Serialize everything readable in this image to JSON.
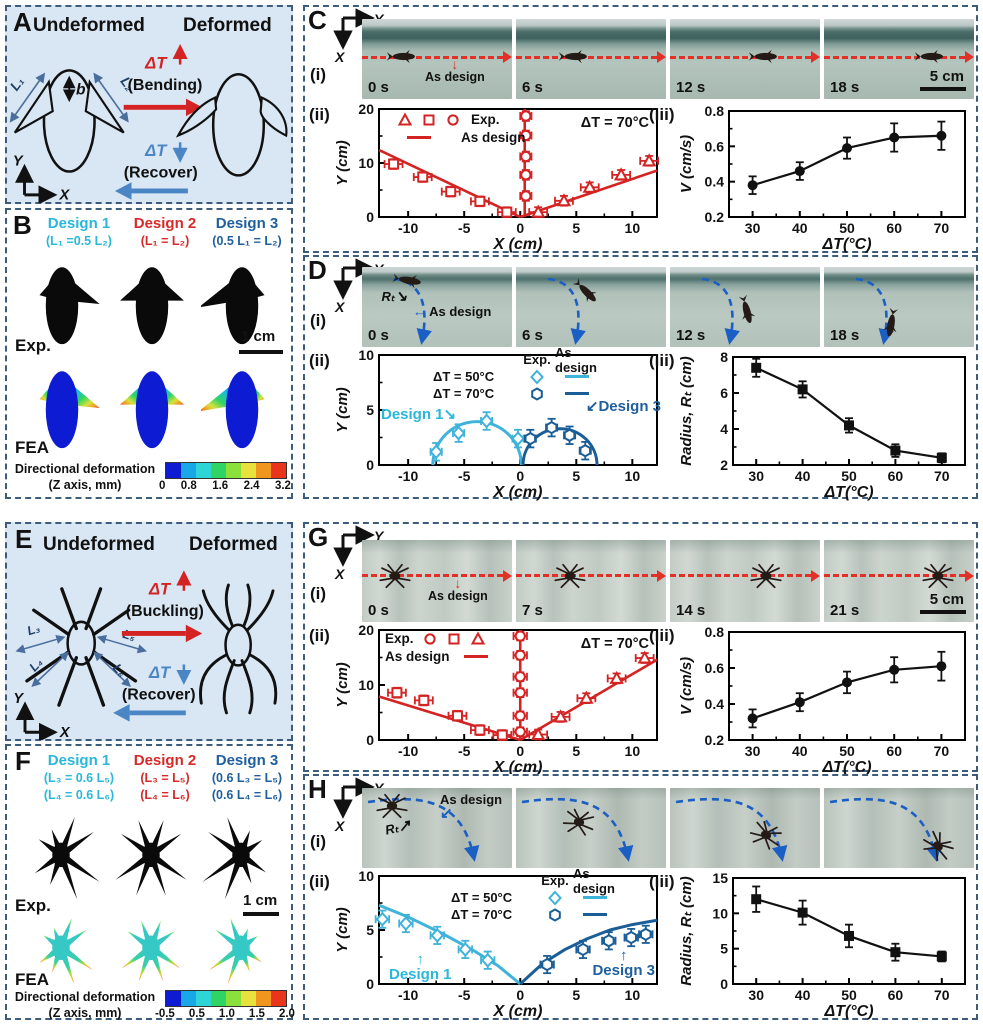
{
  "panels": {
    "a": "A",
    "b": "B",
    "c": "C",
    "d": "D",
    "e": "E",
    "f": "F",
    "g": "G",
    "h": "H"
  },
  "subs": {
    "i": "(i)",
    "ii": "(ii)",
    "iii": "(iii)"
  },
  "axes": {
    "x": "X",
    "y": "Y"
  },
  "legend": {
    "exp": "Exp.",
    "as_design": "As design",
    "t50": "ΔT = 50°C",
    "t70": "ΔT = 70°C"
  },
  "design_labels": {
    "d1": "Design 1",
    "d3": "Design 3"
  },
  "colors": {
    "design1": "#2ab7d9",
    "design2": "#d62a28",
    "design3": "#1f5f9e",
    "red_accent": "#d42323",
    "light_blue": "#3fb3d9",
    "dark_blue": "#1b5e97",
    "recover_blue": "#4a86c4",
    "path_blue": "#1b5ec4",
    "panel_bg": "#d9e6f3",
    "border": "#3d5c7c"
  },
  "panelA": {
    "undeformed": "Undeformed",
    "deformed": "Deformed",
    "dT": "ΔT",
    "bending": "(Bending)",
    "recover": "(Recover)",
    "L1": "L₁",
    "L2": "L₂",
    "b": "b"
  },
  "panelB": {
    "designs": [
      {
        "name": "Design 1",
        "f1": "(L₁ =0.5 L₂)"
      },
      {
        "name": "Design 2",
        "f1": "(L₁ = L₂)"
      },
      {
        "name": "Design 3",
        "f1": "(0.5 L₁ = L₂)"
      }
    ],
    "exp": "Exp.",
    "fea": "FEA",
    "scale": "1 cm",
    "cb_title": "Directional deformation",
    "cb_sub": "(Z axis, mm)",
    "cb_ticks": [
      "0",
      "0.8",
      "1.6",
      "2.4",
      "3.2"
    ]
  },
  "panelC": {
    "times": [
      "0 s",
      "6 s",
      "12 s",
      "18 s"
    ],
    "as_design": "As design",
    "scale": "5 cm"
  },
  "panelD": {
    "times": [
      "0 s",
      "6 s",
      "12 s",
      "18 s"
    ],
    "as_design": "As design",
    "rt": "Rₜ"
  },
  "panelE": {
    "undeformed": "Undeformed",
    "deformed": "Deformed",
    "dT": "ΔT",
    "buckling": "(Buckling)",
    "recover": "(Recover)",
    "L3": "L₃",
    "L4": "L₄",
    "L5": "L₅",
    "L6": "L₆"
  },
  "panelF": {
    "designs": [
      {
        "name": "Design 1",
        "f1": "(L₃ = 0.6 L₅)",
        "f2": "(L₄ = 0.6 L₆)"
      },
      {
        "name": "Design 2",
        "f1": "(L₃ = L₅)",
        "f2": "(L₄ = L₆)"
      },
      {
        "name": "Design 3",
        "f1": "(0.6 L₃ = L₅)",
        "f2": "(0.6 L₄ = L₆)"
      }
    ],
    "exp": "Exp.",
    "fea": "FEA",
    "scale": "1 cm",
    "cb_title": "Directional deformation",
    "cb_sub": "(Z axis, mm)",
    "cb_ticks": [
      "-0.5",
      "0.5",
      "1.0",
      "1.5",
      "2.0"
    ]
  },
  "panelG": {
    "times": [
      "0 s",
      "7 s",
      "14 s",
      "21 s"
    ],
    "as_design": "As design",
    "scale": "5 cm"
  },
  "panelH": {
    "as_design": "As design",
    "rt": "Rₜ"
  },
  "chart_data": {
    "c2": {
      "type": "scatter",
      "xlabel": "X (cm)",
      "ylabel": "Y (cm)",
      "xlim": [
        -12.6,
        12.2
      ],
      "ylim": [
        0,
        20
      ],
      "xticks": [
        -10,
        -5,
        0,
        5,
        10
      ],
      "yticks": [
        0,
        10,
        20
      ],
      "annotation": "ΔT = 70°C",
      "color": "#d42323",
      "legend_position": "top-left",
      "lines": [
        {
          "pts": [
            [
              -12.6,
              12.4
            ],
            [
              0,
              0
            ]
          ]
        },
        {
          "pts": [
            [
              0.4,
              0
            ],
            [
              0.4,
              20
            ]
          ]
        },
        {
          "pts": [
            [
              0,
              0
            ],
            [
              12.2,
              8.6
            ]
          ]
        }
      ],
      "series": [
        {
          "name": "exp-square",
          "marker": "square",
          "pts": [
            [
              -11.3,
              9.8
            ],
            [
              -8.7,
              7.4
            ],
            [
              -6.2,
              4.7
            ],
            [
              -3.6,
              2.9
            ],
            [
              -1.2,
              0.9
            ]
          ],
          "xerr": 0.8,
          "yerr": 0.9
        },
        {
          "name": "exp-circle",
          "marker": "circle",
          "pts": [
            [
              0.5,
              18.7
            ],
            [
              0.5,
              15.1
            ],
            [
              0.5,
              11.2
            ],
            [
              0.5,
              7.8
            ],
            [
              0.5,
              3.9
            ]
          ],
          "xerr": 0.5,
          "yerr": 0.9
        },
        {
          "name": "exp-triangle",
          "marker": "triangle",
          "pts": [
            [
              1.6,
              0.9
            ],
            [
              3.9,
              3.0
            ],
            [
              6.2,
              5.5
            ],
            [
              9.0,
              7.8
            ],
            [
              11.5,
              10.4
            ]
          ],
          "xerr": 0.8,
          "yerr": 0.9
        }
      ]
    },
    "c3": {
      "type": "line",
      "xlabel": "ΔT(°C)",
      "ylabel": "V (cm/s)",
      "xlim": [
        25,
        75
      ],
      "ylim": [
        0.2,
        0.8
      ],
      "xticks": [
        30,
        40,
        50,
        60,
        70
      ],
      "yticks": [
        0.2,
        0.4,
        0.6,
        0.8
      ],
      "color": "#111111",
      "series": [
        {
          "name": "velocity",
          "marker": "fcircle",
          "connect": true,
          "pts": [
            [
              30,
              0.38
            ],
            [
              40,
              0.46
            ],
            [
              50,
              0.59
            ],
            [
              60,
              0.65
            ],
            [
              70,
              0.66
            ]
          ],
          "yerr": [
            0.05,
            0.05,
            0.06,
            0.08,
            0.08
          ]
        }
      ]
    },
    "d2": {
      "type": "scatter",
      "xlabel": "X (cm)",
      "ylabel": "Y (cm)",
      "xlim": [
        -12.6,
        12.2
      ],
      "ylim": [
        0,
        10
      ],
      "xticks": [
        -10,
        -5,
        0,
        5,
        10
      ],
      "yticks": [
        0,
        5,
        10
      ],
      "arcs": [
        {
          "cx": -3.85,
          "r": 3.95,
          "color": "#3fb3d9"
        },
        {
          "cx": 3.55,
          "r": 3.3,
          "color": "#1b5e97"
        }
      ],
      "series": [
        {
          "name": "t50-diamond",
          "marker": "diamond",
          "color": "#3fb3d9",
          "pts": [
            [
              -7.5,
              1.2
            ],
            [
              -5.5,
              2.9
            ],
            [
              -3.0,
              4.0
            ],
            [
              -0.2,
              2.4
            ]
          ],
          "xerr": 0.5,
          "yerr": 0.8
        },
        {
          "name": "t70-hexagon",
          "marker": "hexagon",
          "color": "#1b5e97",
          "pts": [
            [
              0.9,
              2.4
            ],
            [
              2.8,
              3.4
            ],
            [
              4.4,
              2.7
            ],
            [
              5.8,
              1.3
            ]
          ],
          "xerr": 0.5,
          "yerr": 0.8
        }
      ]
    },
    "d3": {
      "type": "line",
      "xlabel": "ΔT(°C)",
      "ylabel": "Radius, Rₜ (cm)",
      "xlim": [
        25,
        75
      ],
      "ylim": [
        2,
        8
      ],
      "xticks": [
        30,
        40,
        50,
        60,
        70
      ],
      "yticks": [
        2,
        4,
        6,
        8
      ],
      "color": "#111111",
      "series": [
        {
          "name": "radius",
          "marker": "fsquare",
          "connect": true,
          "pts": [
            [
              30,
              7.4
            ],
            [
              40,
              6.2
            ],
            [
              50,
              4.2
            ],
            [
              60,
              2.8
            ],
            [
              70,
              2.4
            ]
          ],
          "yerr": [
            0.5,
            0.45,
            0.4,
            0.35,
            0.25
          ]
        }
      ]
    },
    "g2": {
      "type": "scatter",
      "xlabel": "X (cm)",
      "ylabel": "Y (cm)",
      "xlim": [
        -12.6,
        12.2
      ],
      "ylim": [
        0,
        20
      ],
      "xticks": [
        -10,
        -5,
        0,
        5,
        10
      ],
      "yticks": [
        0,
        10,
        20
      ],
      "annotation": "ΔT = 70°C",
      "color": "#d42323",
      "legend_position": "top-left",
      "lines": [
        {
          "pts": [
            [
              -12.6,
              7.9
            ],
            [
              0,
              0
            ]
          ]
        },
        {
          "pts": [
            [
              0,
              0
            ],
            [
              0,
              20
            ]
          ]
        },
        {
          "pts": [
            [
              0,
              0
            ],
            [
              12.2,
              14.6
            ]
          ]
        }
      ],
      "series": [
        {
          "name": "exp-square",
          "marker": "square",
          "pts": [
            [
              -11.0,
              8.6
            ],
            [
              -8.6,
              7.2
            ],
            [
              -5.6,
              4.4
            ],
            [
              -3.6,
              1.8
            ],
            [
              -1.6,
              0.9
            ]
          ],
          "xerr": 0.8,
          "yerr": 0.9
        },
        {
          "name": "exp-circle",
          "marker": "circle",
          "pts": [
            [
              0,
              18.9
            ],
            [
              0,
              15.4
            ],
            [
              0,
              11.5
            ],
            [
              0,
              8.6
            ],
            [
              0,
              4.4
            ],
            [
              0,
              1.5
            ]
          ],
          "xerr": 0.6,
          "yerr": 0.8
        },
        {
          "name": "exp-triangle",
          "marker": "triangle",
          "pts": [
            [
              1.6,
              1.0
            ],
            [
              3.6,
              4.2
            ],
            [
              5.9,
              7.6
            ],
            [
              8.6,
              11.2
            ],
            [
              11.1,
              14.9
            ]
          ],
          "xerr": 0.8,
          "yerr": 0.9
        }
      ]
    },
    "g3": {
      "type": "line",
      "xlabel": "ΔT(°C)",
      "ylabel": "V (cm/s)",
      "xlim": [
        25,
        75
      ],
      "ylim": [
        0.2,
        0.8
      ],
      "xticks": [
        30,
        40,
        50,
        60,
        70
      ],
      "yticks": [
        0.2,
        0.4,
        0.6,
        0.8
      ],
      "color": "#111111",
      "series": [
        {
          "name": "velocity",
          "marker": "fcircle",
          "connect": true,
          "pts": [
            [
              30,
              0.32
            ],
            [
              40,
              0.41
            ],
            [
              50,
              0.52
            ],
            [
              60,
              0.59
            ],
            [
              70,
              0.61
            ]
          ],
          "yerr": [
            0.05,
            0.05,
            0.06,
            0.07,
            0.08
          ]
        }
      ]
    },
    "h2": {
      "type": "scatter",
      "xlabel": "X (cm)",
      "ylabel": "Y (cm)",
      "xlim": [
        -12.6,
        12.2
      ],
      "ylim": [
        0,
        10
      ],
      "xticks": [
        -10,
        -5,
        0,
        5,
        10
      ],
      "yticks": [
        0,
        5,
        10
      ],
      "curves": [
        {
          "color": "#3fb3d9",
          "pts": [
            [
              -12.6,
              7.3
            ],
            [
              -10,
              6.2
            ],
            [
              -7,
              4.7
            ],
            [
              -4,
              3.0
            ],
            [
              -2,
              1.7
            ],
            [
              0,
              0
            ]
          ]
        },
        {
          "color": "#1b5e97",
          "pts": [
            [
              0,
              0
            ],
            [
              2,
              1.9
            ],
            [
              4,
              3.2
            ],
            [
              6,
              4.2
            ],
            [
              8,
              5.0
            ],
            [
              10,
              5.5
            ],
            [
              12.2,
              5.9
            ]
          ]
        }
      ],
      "series": [
        {
          "name": "t50-diamond",
          "marker": "diamond",
          "color": "#3fb3d9",
          "pts": [
            [
              -12.3,
              6.0
            ],
            [
              -10.2,
              5.6
            ],
            [
              -7.4,
              4.5
            ],
            [
              -4.9,
              3.2
            ],
            [
              -2.9,
              2.2
            ]
          ],
          "xerr": 0.6,
          "yerr": 0.8
        },
        {
          "name": "t70-hexagon",
          "marker": "hexagon",
          "color": "#1b5e97",
          "pts": [
            [
              2.4,
              1.8
            ],
            [
              5.6,
              3.2
            ],
            [
              7.9,
              4.0
            ],
            [
              9.9,
              4.3
            ],
            [
              11.2,
              4.6
            ]
          ],
          "xerr": 0.6,
          "yerr": 0.8
        }
      ]
    },
    "h3": {
      "type": "line",
      "xlabel": "ΔT(°C)",
      "ylabel": "Radius, Rₜ (cm)",
      "xlim": [
        25,
        75
      ],
      "ylim": [
        0,
        15
      ],
      "xticks": [
        30,
        40,
        50,
        60,
        70
      ],
      "yticks": [
        0,
        5,
        10,
        15
      ],
      "color": "#111111",
      "series": [
        {
          "name": "radius",
          "marker": "fsquare",
          "connect": true,
          "pts": [
            [
              30,
              12.0
            ],
            [
              40,
              10.1
            ],
            [
              50,
              6.8
            ],
            [
              60,
              4.5
            ],
            [
              70,
              3.9
            ]
          ],
          "yerr": [
            1.8,
            1.7,
            1.6,
            1.2,
            0.7
          ]
        }
      ]
    }
  }
}
